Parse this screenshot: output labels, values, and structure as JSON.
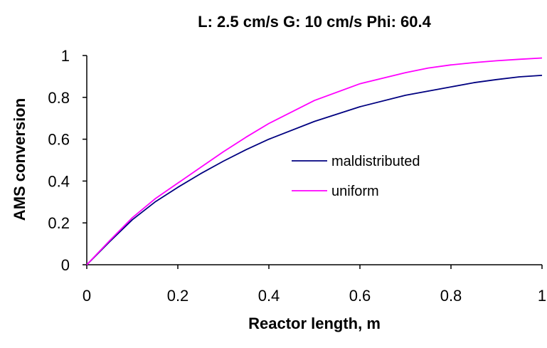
{
  "chart_data": {
    "type": "line",
    "title": "L: 2.5 cm/s   G: 10 cm/s   Phi: 60.4",
    "xlabel": "Reactor length, m",
    "ylabel": "AMS conversion",
    "xlim": [
      0,
      1
    ],
    "ylim": [
      0,
      1
    ],
    "x_ticks": [
      "0",
      "0.2",
      "0.4",
      "0.6",
      "0.8",
      "1"
    ],
    "y_ticks": [
      "0",
      "0.2",
      "0.4",
      "0.6",
      "0.8",
      "1"
    ],
    "grid": false,
    "legend_position": "center-right",
    "series": [
      {
        "name": "maldistributed",
        "color": "#000080",
        "x": [
          0,
          0.05,
          0.1,
          0.15,
          0.2,
          0.25,
          0.3,
          0.35,
          0.4,
          0.5,
          0.6,
          0.7,
          0.8,
          0.85,
          0.9,
          0.95,
          1.0
        ],
        "y": [
          0,
          0.11,
          0.215,
          0.3,
          0.37,
          0.435,
          0.495,
          0.55,
          0.6,
          0.685,
          0.755,
          0.81,
          0.85,
          0.87,
          0.885,
          0.898,
          0.905
        ]
      },
      {
        "name": "uniform",
        "color": "#FF00FF",
        "x": [
          0,
          0.05,
          0.1,
          0.15,
          0.2,
          0.25,
          0.3,
          0.35,
          0.4,
          0.5,
          0.6,
          0.7,
          0.75,
          0.8,
          0.85,
          0.9,
          0.95,
          1.0
        ],
        "y": [
          0,
          0.115,
          0.225,
          0.315,
          0.39,
          0.465,
          0.54,
          0.61,
          0.675,
          0.785,
          0.865,
          0.918,
          0.94,
          0.955,
          0.966,
          0.975,
          0.982,
          0.988
        ]
      }
    ]
  }
}
